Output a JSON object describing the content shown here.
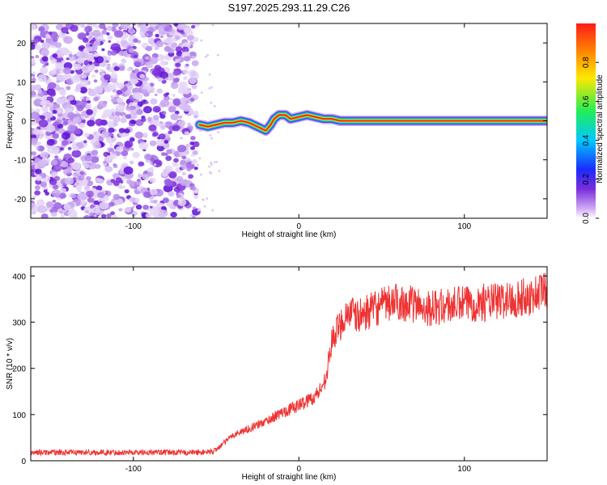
{
  "title": "S197.2025.293.11.29.C26",
  "chart_data": [
    {
      "type": "heatmap",
      "name": "spectrogram",
      "xlabel": "Height of straight line (km)",
      "ylabel": "Frequency (Hz)",
      "xlim": [
        -162,
        150
      ],
      "ylim": [
        -25,
        25
      ],
      "xticks": [
        -100,
        0,
        100
      ],
      "yticks": [
        -20,
        -10,
        0,
        10,
        20
      ],
      "noise_region_x": [
        -162,
        -62
      ],
      "carrier_trace": {
        "x": [
          -60,
          -55,
          -50,
          -45,
          -40,
          -35,
          -30,
          -25,
          -20,
          -17,
          -15,
          -12,
          -8,
          -5,
          0,
          5,
          10,
          15,
          20,
          25,
          30,
          150
        ],
        "freq": [
          -1,
          -1.5,
          -1,
          -0.5,
          -0.5,
          0,
          -0.5,
          -1.5,
          -2.5,
          -1,
          0.5,
          1.5,
          1.5,
          0.5,
          1,
          1.5,
          1,
          0.5,
          0.5,
          0,
          0,
          0
        ]
      },
      "colorbar": {
        "label": "Normalized spectral amplitude",
        "range": [
          0,
          1
        ],
        "ticks": [
          "0.0",
          "0.2",
          "0.4",
          "0.6",
          "0.8"
        ]
      }
    },
    {
      "type": "line",
      "name": "snr",
      "xlabel": "Height of straight line (km)",
      "ylabel": "SNR (10 * v/v)",
      "xlim": [
        -162,
        150
      ],
      "ylim": [
        0,
        420
      ],
      "xticks": [
        -100,
        0,
        100
      ],
      "yticks": [
        0,
        100,
        200,
        300,
        400
      ],
      "color": "#ee3333",
      "series": [
        {
          "name": "SNR",
          "x": [
            -162,
            -140,
            -120,
            -100,
            -80,
            -60,
            -52,
            -48,
            -40,
            -30,
            -20,
            -10,
            0,
            5,
            10,
            15,
            18,
            20,
            25,
            30,
            35,
            40,
            50,
            60,
            80,
            100,
            120,
            140,
            150
          ],
          "values": [
            18,
            18,
            18,
            18,
            18,
            18,
            20,
            30,
            55,
            70,
            85,
            105,
            120,
            130,
            140,
            165,
            215,
            260,
            295,
            325,
            310,
            320,
            335,
            345,
            330,
            340,
            345,
            355,
            375
          ]
        }
      ]
    }
  ]
}
